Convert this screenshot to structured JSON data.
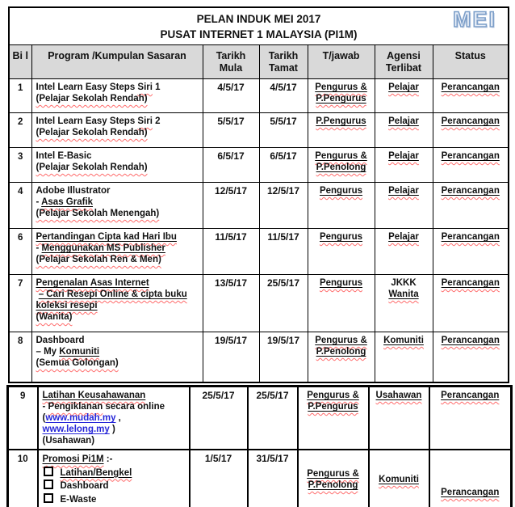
{
  "title": {
    "line1": "PELAN INDUK MEI 2017",
    "line2": "PUSAT INTERNET 1 MALAYSIA (PI1M)",
    "wordart": "MEI"
  },
  "header": {
    "bil": "Bi l",
    "program": "Program /Kumpulan Sasaran",
    "mula": "Tarikh Mula",
    "tamat": "Tarikh Tamat",
    "tjawab": "T/jawab",
    "agensi": "Agensi Terlibat",
    "status": "Status"
  },
  "colors": {
    "header_bg": "#d9d9d9",
    "border": "#000000",
    "link": "#2626d8",
    "squiggle": "#ff6b6b",
    "wordart_fill": "#e9eff8",
    "wordart_stroke": "#7d9fc9"
  },
  "tables": [
    {
      "rows": [
        {
          "bil": "1",
          "program": [
            [
              {
                "t": "Intel Learn Easy Steps ",
                "s": ""
              },
              {
                "t": "Siri",
                "s": "m"
              },
              {
                "t": " 1",
                "s": ""
              }
            ],
            [
              {
                "t": "(Pelajar Sekolah Rendah)",
                "s": "m"
              }
            ]
          ],
          "mula": "4/5/17",
          "tamat": "4/5/17",
          "tjawab": [
            [
              {
                "t": "Pengurus &",
                "s": "um"
              }
            ],
            [
              {
                "t": "P.Pengurus",
                "s": "um"
              }
            ]
          ],
          "agensi": [
            [
              {
                "t": "Pelajar",
                "s": "um"
              }
            ]
          ],
          "status": [
            [
              {
                "t": "Perancangan",
                "s": "um"
              }
            ]
          ]
        },
        {
          "bil": "2",
          "program": [
            [
              {
                "t": "Intel Learn Easy Steps ",
                "s": ""
              },
              {
                "t": "Siri",
                "s": "m"
              },
              {
                "t": " 2",
                "s": ""
              }
            ],
            [
              {
                "t": "(Pelajar Sekolah Rendah)",
                "s": "m"
              }
            ]
          ],
          "mula": "5/5/17",
          "tamat": "5/5/17",
          "tjawab": [
            [
              {
                "t": "P.Pengurus",
                "s": "um"
              }
            ]
          ],
          "agensi": [
            [
              {
                "t": "Pelajar",
                "s": "um"
              }
            ]
          ],
          "status": [
            [
              {
                "t": "Perancangan",
                "s": "um"
              }
            ]
          ]
        },
        {
          "bil": "3",
          "program": [
            [
              {
                "t": "Intel E-Basic",
                "s": ""
              }
            ],
            [
              {
                "t": "(Pelajar Sekolah Rendah)",
                "s": "m"
              }
            ]
          ],
          "mula": "6/5/17",
          "tamat": "6/5/17",
          "tjawab": [
            [
              {
                "t": "Pengurus &",
                "s": "um"
              }
            ],
            [
              {
                "t": "P.Penolong",
                "s": "um"
              }
            ]
          ],
          "agensi": [
            [
              {
                "t": "Pelajar",
                "s": "um"
              }
            ]
          ],
          "status": [
            [
              {
                "t": "Perancangan",
                "s": "um"
              }
            ]
          ]
        },
        {
          "bil": "4",
          "program": [
            [
              {
                "t": "Adobe Illustrator",
                "s": ""
              }
            ],
            [
              {
                "t": "- ",
                "s": ""
              },
              {
                "t": "Asas Grafik",
                "s": "um"
              }
            ],
            [
              {
                "t": "(Pelajar Sekolah Menengah)",
                "s": "m"
              }
            ]
          ],
          "mula": "12/5/17",
          "tamat": "12/5/17",
          "tjawab": [
            [
              {
                "t": "Pengurus",
                "s": "um"
              }
            ]
          ],
          "agensi": [
            [
              {
                "t": "Pelajar",
                "s": "um"
              }
            ]
          ],
          "status": [
            [
              {
                "t": "Perancangan",
                "s": "um"
              }
            ]
          ]
        },
        {
          "bil": "6",
          "program": [
            [
              {
                "t": "Pertandingan Cipta kad Hari Ibu",
                "s": "um"
              }
            ],
            [
              {
                "t": "- ",
                "s": ""
              },
              {
                "t": "Menggunakan MS Publisher",
                "s": "um"
              }
            ],
            [
              {
                "t": "(Pelajar Sekolah Ren & Men)",
                "s": "m"
              }
            ]
          ],
          "mula": "11/5/17",
          "tamat": "11/5/17",
          "tjawab": [
            [
              {
                "t": "Pengurus",
                "s": "um"
              }
            ]
          ],
          "agensi": [
            [
              {
                "t": "Pelajar",
                "s": "um"
              }
            ]
          ],
          "status": [
            [
              {
                "t": "Perancangan",
                "s": "um"
              }
            ]
          ]
        },
        {
          "bil": "7",
          "program": [
            [
              {
                "t": "Pengenalan Asas Internet",
                "s": "um"
              }
            ],
            [
              {
                "t": " ",
                "s": ""
              },
              {
                "t": "– Cari Resepi Online & cipta buku",
                "s": "um"
              }
            ],
            [
              {
                "t": "koleksi resepi",
                "s": "um"
              }
            ],
            [
              {
                "t": "(Wanita)",
                "s": "m"
              }
            ]
          ],
          "mula": "13/5/17",
          "tamat": "25/5/17",
          "tjawab": [
            [
              {
                "t": "Pengurus",
                "s": "um"
              }
            ]
          ],
          "agensi": [
            [
              {
                "t": "JKKK",
                "s": ""
              }
            ],
            [
              {
                "t": "Wanita",
                "s": "um"
              }
            ]
          ],
          "status": [
            [
              {
                "t": "Perancangan",
                "s": "um"
              }
            ]
          ]
        },
        {
          "bil": "8",
          "program": [
            [
              {
                "t": "Dashboard",
                "s": ""
              }
            ],
            [
              {
                "t": "– My ",
                "s": ""
              },
              {
                "t": "Komuniti",
                "s": "um"
              }
            ],
            [
              {
                "t": "(Semua Golongan)",
                "s": "m"
              }
            ]
          ],
          "mula": "19/5/17",
          "tamat": "19/5/17",
          "tjawab": [
            [
              {
                "t": "Pengurus &",
                "s": "um"
              }
            ],
            [
              {
                "t": "P.Penolong",
                "s": "um"
              }
            ]
          ],
          "agensi": [
            [
              {
                "t": "Komuniti",
                "s": "um"
              }
            ]
          ],
          "status": [
            [
              {
                "t": "Perancangan",
                "s": "um"
              }
            ]
          ]
        }
      ]
    },
    {
      "rows": [
        {
          "bil": "9",
          "program": [
            [
              {
                "t": "Latihan Keusahawanan",
                "s": "um"
              }
            ],
            [
              {
                "t": "- ",
                "s": ""
              },
              {
                "t": "Pengiklanan",
                "s": "m"
              },
              {
                "t": " secara online",
                "s": ""
              }
            ],
            [
              {
                "t": "(",
                "s": ""
              },
              {
                "t": "www.mudah.my",
                "s": "link"
              },
              {
                "t": " ,",
                "s": ""
              }
            ],
            [
              {
                "t": "www.lelong.my",
                "s": "link"
              },
              {
                "t": " )",
                "s": ""
              }
            ],
            [
              {
                "t": "(Usahawan)",
                "s": ""
              }
            ]
          ],
          "mula": "25/5/17",
          "tamat": "25/5/17",
          "tjawab": [
            [
              {
                "t": "Pengurus &",
                "s": "um"
              }
            ],
            [
              {
                "t": "P.Pengurus",
                "s": "um"
              }
            ]
          ],
          "agensi": [
            [
              {
                "t": "Usahawan",
                "s": "um"
              }
            ]
          ],
          "status": [
            [
              {
                "t": "Perancangan",
                "s": "um"
              }
            ]
          ]
        },
        {
          "bil": "10",
          "lh": 16,
          "valign": {
            "tjawab": "mid",
            "agensi": "mid",
            "status": "low"
          },
          "program": [
            [
              {
                "t": "Promosi Pi1M",
                "s": "um"
              },
              {
                "t": " :-",
                "s": ""
              }
            ],
            [
              {
                "t": "Latihan/Bengkel",
                "s": "um",
                "cb": true
              }
            ],
            [
              {
                "t": "Dashboard",
                "s": "",
                "cb": true
              }
            ],
            [
              {
                "t": "E-Waste",
                "s": "",
                "cb": true
              }
            ]
          ],
          "mula": "1/5/17",
          "tamat": "31/5/17",
          "tjawab": [
            [
              {
                "t": "Pengurus &",
                "s": "um"
              }
            ],
            [
              {
                "t": "P.Penolong",
                "s": "um"
              }
            ]
          ],
          "agensi": [
            [
              {
                "t": "Komuniti",
                "s": "um"
              }
            ]
          ],
          "status": [
            [
              {
                "t": "Perancangan",
                "s": "um"
              }
            ]
          ]
        }
      ]
    }
  ]
}
